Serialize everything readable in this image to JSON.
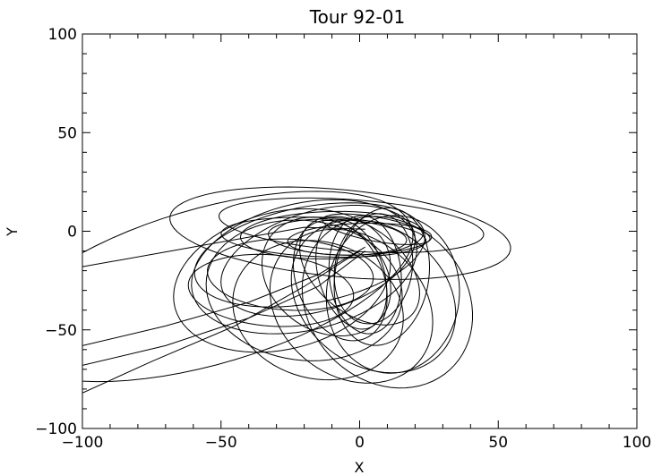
{
  "chart_data": {
    "type": "line",
    "title": "Tour 92-01",
    "xlabel": "X",
    "ylabel": "Y",
    "xlim": [
      -100,
      100
    ],
    "ylim": [
      -100,
      100
    ],
    "xticks": [
      -100,
      -50,
      0,
      50,
      100
    ],
    "yticks": [
      -100,
      -50,
      0,
      50,
      100
    ],
    "grid": false,
    "line_color": "#000000",
    "orbits": [
      {
        "cx": -7,
        "cy": -1,
        "rx": 62,
        "ry": 22,
        "rot": -8
      },
      {
        "cx": -3,
        "cy": 3,
        "rx": 48,
        "ry": 13,
        "rot": -6
      },
      {
        "cx": -13,
        "cy": -3,
        "rx": 37,
        "ry": 10,
        "rot": -3
      },
      {
        "cx": -10,
        "cy": -2,
        "rx": 33,
        "ry": 12,
        "rot": 2
      },
      {
        "cx": -8,
        "cy": -3,
        "rx": 25,
        "ry": 9,
        "rot": -4
      },
      {
        "cx": -18,
        "cy": -12,
        "rx": 43,
        "ry": 24,
        "rot": 18
      },
      {
        "cx": -20,
        "cy": -18,
        "rx": 43,
        "ry": 31,
        "rot": 28
      },
      {
        "cx": -15,
        "cy": -15,
        "rx": 38,
        "ry": 24,
        "rot": 30
      },
      {
        "cx": -28,
        "cy": -25,
        "rx": 42,
        "ry": 33,
        "rot": 36
      },
      {
        "cx": -20,
        "cy": -30,
        "rx": 34,
        "ry": 37,
        "rot": 42
      },
      {
        "cx": -12,
        "cy": -23,
        "rx": 22,
        "ry": 31,
        "rot": 20
      },
      {
        "cx": -7,
        "cy": -25,
        "rx": 16,
        "ry": 31,
        "rot": 12
      },
      {
        "cx": -3,
        "cy": -22,
        "rx": 12,
        "ry": 28,
        "rot": 10
      },
      {
        "cx": 2,
        "cy": -22,
        "rx": 13,
        "ry": 30,
        "rot": 3
      },
      {
        "cx": 5,
        "cy": -19,
        "rx": 14,
        "ry": 28,
        "rot": -5
      },
      {
        "cx": 8,
        "cy": -23,
        "rx": 17,
        "ry": 35,
        "rot": -5
      },
      {
        "cx": 12,
        "cy": -32,
        "rx": 24,
        "ry": 40,
        "rot": -2
      },
      {
        "cx": 10,
        "cy": -36,
        "rx": 30,
        "ry": 44,
        "rot": 12
      },
      {
        "cx": 5,
        "cy": -33,
        "rx": 28,
        "ry": 40,
        "rot": 20
      },
      {
        "cx": -3,
        "cy": -38,
        "rx": 28,
        "ry": 40,
        "rot": 18
      },
      {
        "cx": -15,
        "cy": -40,
        "rx": 30,
        "ry": 36,
        "rot": 20
      },
      {
        "cx": 0,
        "cy": -20,
        "rx": 18,
        "ry": 30,
        "rot": 30
      },
      {
        "cx": -25,
        "cy": -22,
        "rx": 30,
        "ry": 18,
        "rot": -5
      },
      {
        "cx": -32,
        "cy": -30,
        "rx": 30,
        "ry": 18,
        "rot": -8
      },
      {
        "cx": 6,
        "cy": 1,
        "rx": 20,
        "ry": 6,
        "rot": -15
      },
      {
        "cx": 0,
        "cy": -4,
        "rx": 26,
        "ry": 8,
        "rot": 3
      },
      {
        "cx": -55,
        "cy": -28,
        "rx": 80,
        "ry": 38,
        "rot": 25
      }
    ],
    "approach_lines": [
      [
        [
          -100,
          -18
        ],
        [
          -60,
          -8
        ],
        [
          -20,
          2
        ],
        [
          2,
          1
        ]
      ],
      [
        [
          -100,
          -68
        ],
        [
          -70,
          -58
        ],
        [
          -40,
          -44
        ],
        [
          -15,
          -28
        ],
        [
          2,
          -10
        ]
      ],
      [
        [
          -100,
          -82
        ],
        [
          -75,
          -66
        ],
        [
          -45,
          -48
        ],
        [
          -20,
          -28
        ],
        [
          0,
          -10
        ]
      ],
      [
        [
          -100,
          -58
        ],
        [
          -70,
          -48
        ],
        [
          -40,
          -36
        ],
        [
          -15,
          -22
        ],
        [
          2,
          -8
        ]
      ]
    ]
  }
}
